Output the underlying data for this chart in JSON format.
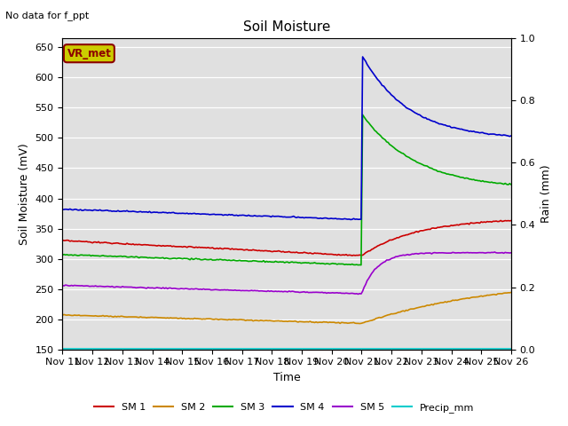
{
  "title": "Soil Moisture",
  "subtitle": "No data for f_ppt",
  "xlabel": "Time",
  "ylabel_left": "Soil Moisture (mV)",
  "ylabel_right": "Rain (mm)",
  "ylim_left": [
    150,
    665
  ],
  "ylim_right": [
    0.0,
    1.0
  ],
  "yticks_left": [
    150,
    200,
    250,
    300,
    350,
    400,
    450,
    500,
    550,
    600,
    650
  ],
  "yticks_right": [
    0.0,
    0.2,
    0.4,
    0.6,
    0.8,
    1.0
  ],
  "xtick_labels": [
    "Nov 11",
    "Nov 12",
    "Nov 13",
    "Nov 14",
    "Nov 15",
    "Nov 16",
    "Nov 17",
    "Nov 18",
    "Nov 19",
    "Nov 20",
    "Nov 21",
    "Nov 22",
    "Nov 23",
    "Nov 24",
    "Nov 25",
    "Nov 26"
  ],
  "legend_box_text": "VR_met",
  "legend_box_color": "#cccc00",
  "legend_box_text_color": "#8b0000",
  "background_color": "#e0e0e0",
  "colors": {
    "SM1": "#cc0000",
    "SM2": "#cc8800",
    "SM3": "#00aa00",
    "SM4": "#0000cc",
    "SM5": "#9900cc",
    "Precip": "#00cccc"
  },
  "line_width": 1.2
}
